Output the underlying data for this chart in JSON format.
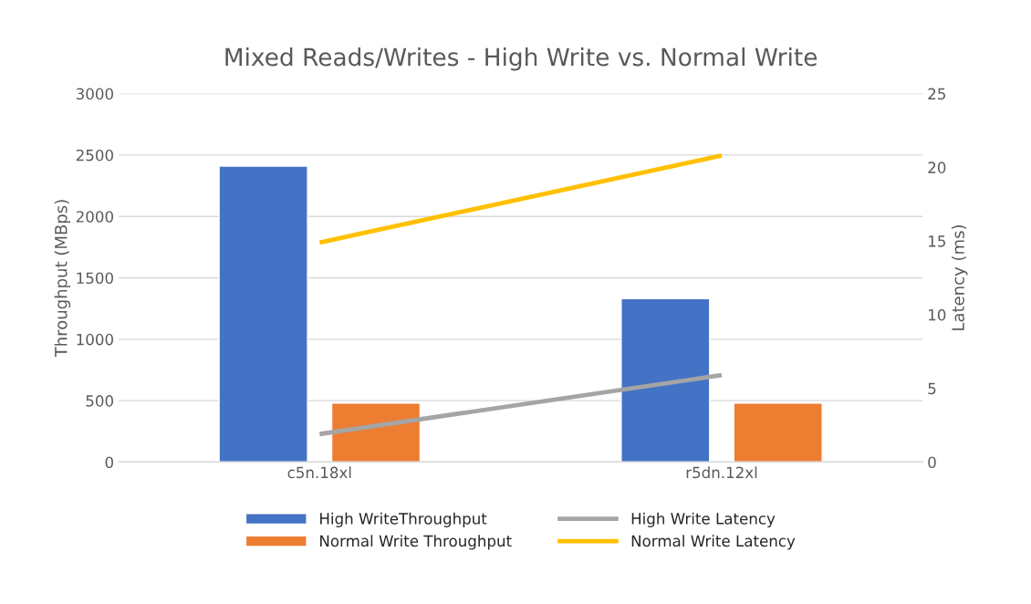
{
  "chart_data": {
    "type": "bar",
    "title": "Mixed Reads/Writes - High Write vs. Normal Write",
    "categories": [
      "c5n.18xl",
      "r5dn.12xl"
    ],
    "ylabel": "Throughput (MBps)",
    "y2label": "Latency (ms)",
    "series": [
      {
        "name": "High WriteThroughput",
        "color": "#4472c4",
        "values": [
          2410,
          1330
        ]
      },
      {
        "name": "Normal Write Throughput",
        "color": "#ed7d31",
        "values": [
          480,
          480
        ]
      },
      {
        "name": "High Write Latency",
        "type": "line",
        "axis": "y2",
        "color": "#a5a5a5",
        "values": [
          1.9,
          5.9
        ]
      },
      {
        "name": "Normal Write Latency",
        "type": "line",
        "axis": "y2",
        "color": "#ffc000",
        "values": [
          14.9,
          20.8
        ]
      }
    ],
    "ylim": [
      0,
      3000
    ],
    "yticks": [
      0,
      500,
      1000,
      1500,
      2000,
      2500,
      3000
    ],
    "y2lim": [
      0,
      25
    ],
    "y2ticks": [
      0,
      5,
      10,
      15,
      20,
      25
    ],
    "grid": "y",
    "legend": "bottom"
  }
}
